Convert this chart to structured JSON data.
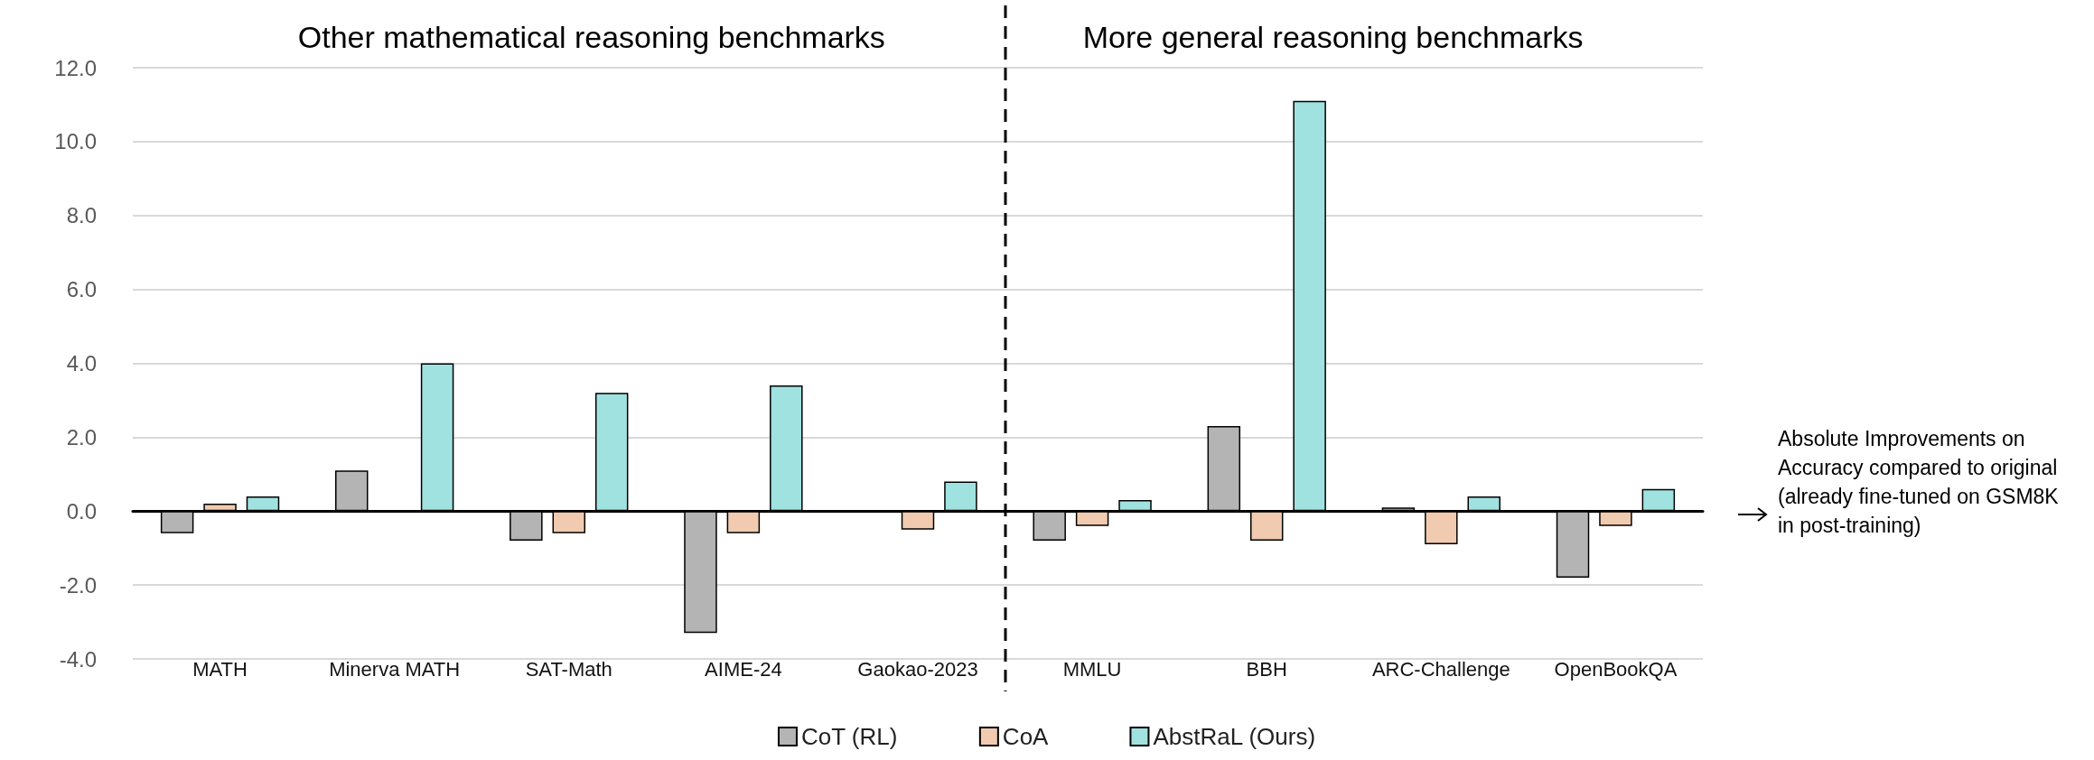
{
  "chart_data": {
    "type": "bar",
    "categories": [
      "MATH",
      "Minerva MATH",
      "SAT-Math",
      "AIME-24",
      "Gaokao-2023",
      "MMLU",
      "BBH",
      "ARC-Challenge",
      "OpenBookQA"
    ],
    "series": [
      {
        "name": "CoT (RL)",
        "color": "#b4b4b4",
        "values": [
          -0.6,
          1.1,
          -0.8,
          -3.3,
          null,
          -0.8,
          2.3,
          0.1,
          -1.8
        ]
      },
      {
        "name": "CoA",
        "color": "#f0cbaf",
        "values": [
          0.2,
          null,
          -0.6,
          -0.6,
          -0.5,
          -0.4,
          -0.8,
          -0.9,
          -0.4
        ]
      },
      {
        "name": "AbstRaL (Ours)",
        "color": "#a0e2e0",
        "values": [
          0.4,
          4.0,
          3.2,
          3.4,
          0.8,
          0.3,
          11.1,
          0.4,
          0.6
        ]
      }
    ],
    "ylim": [
      -4,
      12
    ],
    "yticks": [
      {
        "value": -4,
        "label": "-4.0"
      },
      {
        "value": -2,
        "label": "-2.0"
      },
      {
        "value": 0,
        "label": "0.0"
      },
      {
        "value": 2,
        "label": "2.0"
      },
      {
        "value": 4,
        "label": "4.0"
      },
      {
        "value": 6,
        "label": "6.0"
      },
      {
        "value": 8,
        "label": "8.0"
      },
      {
        "value": 10,
        "label": "10.0"
      },
      {
        "value": 12,
        "label": "12.0"
      }
    ],
    "grid": "y",
    "legend": "bottom",
    "annotations": [
      "Other mathematical reasoning benchmarks",
      "More general reasoning benchmarks",
      "Absolute Improvements on Accuracy compared to original (already fine-tuned on GSM8K in post-training)"
    ]
  }
}
